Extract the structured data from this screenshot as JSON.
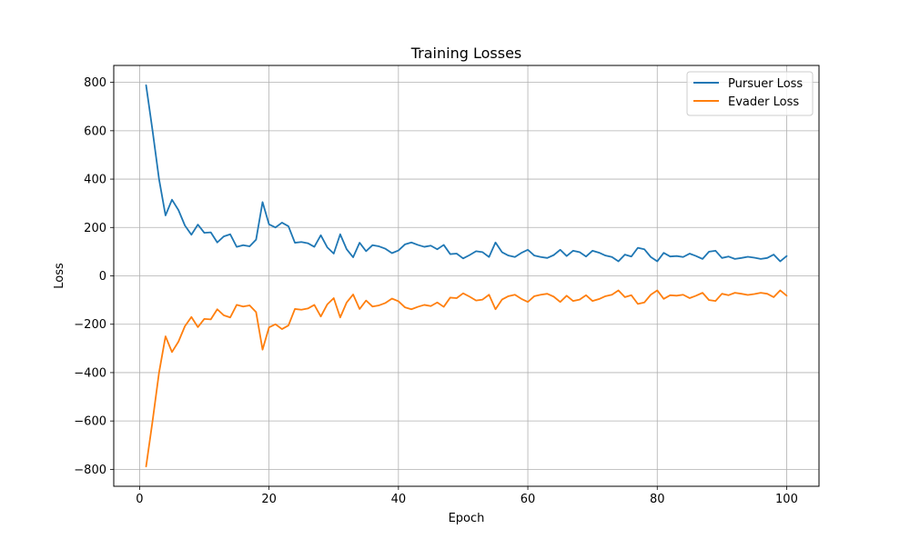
{
  "chart_data": {
    "type": "line",
    "title": "Training Losses",
    "xlabel": "Epoch",
    "ylabel": "Loss",
    "xlim": [
      -4,
      105
    ],
    "ylim": [
      -870,
      870
    ],
    "xticks": [
      0,
      20,
      40,
      60,
      80,
      100
    ],
    "yticks": [
      -800,
      -600,
      -400,
      -200,
      0,
      200,
      400,
      600,
      800
    ],
    "grid": true,
    "legend_position": "top-right",
    "x": [
      1,
      2,
      3,
      4,
      5,
      6,
      7,
      8,
      9,
      10,
      11,
      12,
      13,
      14,
      15,
      16,
      17,
      18,
      19,
      20,
      21,
      22,
      23,
      24,
      25,
      26,
      27,
      28,
      29,
      30,
      31,
      32,
      33,
      34,
      35,
      36,
      37,
      38,
      39,
      40,
      41,
      42,
      43,
      44,
      45,
      46,
      47,
      48,
      49,
      50,
      51,
      52,
      53,
      54,
      55,
      56,
      57,
      58,
      59,
      60,
      61,
      62,
      63,
      64,
      65,
      66,
      67,
      68,
      69,
      70,
      71,
      72,
      73,
      74,
      75,
      76,
      77,
      78,
      79,
      80,
      81,
      82,
      83,
      84,
      85,
      86,
      87,
      88,
      89,
      90,
      91,
      92,
      93,
      94,
      95,
      96,
      97,
      98,
      99,
      100
    ],
    "series": [
      {
        "name": "Pursuer Loss",
        "color": "#1f77b4",
        "values": [
          788,
          600,
          400,
          250,
          315,
          272,
          208,
          170,
          212,
          178,
          180,
          138,
          163,
          172,
          120,
          127,
          122,
          150,
          305,
          213,
          200,
          220,
          205,
          137,
          140,
          135,
          120,
          168,
          118,
          92,
          172,
          110,
          77,
          137,
          102,
          127,
          122,
          112,
          94,
          105,
          130,
          138,
          128,
          120,
          125,
          110,
          128,
          90,
          92,
          72,
          86,
          102,
          98,
          78,
          138,
          98,
          84,
          78,
          95,
          108,
          84,
          78,
          74,
          86,
          108,
          82,
          104,
          98,
          80,
          104,
          96,
          84,
          78,
          60,
          88,
          80,
          116,
          110,
          78,
          60,
          95,
          80,
          82,
          78,
          92,
          82,
          70,
          100,
          104,
          74,
          80,
          70,
          74,
          79,
          75,
          70,
          74,
          88,
          60,
          82
        ]
      },
      {
        "name": "Evader Loss",
        "color": "#ff7f0e",
        "values": [
          -788,
          -600,
          -400,
          -250,
          -315,
          -272,
          -208,
          -170,
          -212,
          -178,
          -180,
          -138,
          -163,
          -172,
          -120,
          -127,
          -122,
          -150,
          -305,
          -213,
          -200,
          -220,
          -205,
          -137,
          -140,
          -135,
          -120,
          -168,
          -118,
          -92,
          -172,
          -110,
          -77,
          -137,
          -102,
          -127,
          -122,
          -112,
          -94,
          -105,
          -130,
          -138,
          -128,
          -120,
          -125,
          -110,
          -128,
          -90,
          -92,
          -72,
          -86,
          -102,
          -98,
          -78,
          -138,
          -98,
          -84,
          -78,
          -95,
          -108,
          -84,
          -78,
          -74,
          -86,
          -108,
          -82,
          -104,
          -98,
          -80,
          -104,
          -96,
          -84,
          -78,
          -60,
          -88,
          -80,
          -116,
          -110,
          -78,
          -60,
          -95,
          -80,
          -82,
          -78,
          -92,
          -82,
          -70,
          -100,
          -104,
          -74,
          -80,
          -70,
          -74,
          -79,
          -75,
          -70,
          -74,
          -88,
          -60,
          -82
        ]
      }
    ]
  }
}
